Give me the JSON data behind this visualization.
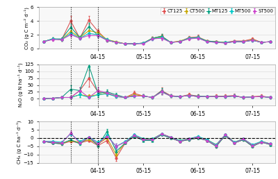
{
  "series_names": [
    "CT125",
    "CT500",
    "MT125",
    "MT500",
    "ST500"
  ],
  "series_colors": [
    "#E05050",
    "#C8A800",
    "#00A080",
    "#00C8C8",
    "#CC44CC"
  ],
  "series_markers": [
    "o",
    "s",
    "^",
    "D",
    "o"
  ],
  "n_points": 26,
  "x_values": [
    0,
    1,
    2,
    3,
    4,
    5,
    6,
    7,
    8,
    9,
    10,
    11,
    12,
    13,
    14,
    15,
    16,
    17,
    18,
    19,
    20,
    21,
    22,
    23,
    24,
    25
  ],
  "vline_x": [
    3,
    6
  ],
  "xtick_positions": [
    6,
    11,
    17,
    23
  ],
  "xtick_labels": [
    "04-15",
    "05-15",
    "06-15",
    "07-15"
  ],
  "co2_data": {
    "CT125": [
      1.0,
      1.4,
      1.3,
      4.0,
      1.5,
      4.1,
      2.5,
      1.2,
      0.9,
      0.7,
      0.7,
      0.8,
      1.5,
      1.8,
      0.9,
      1.0,
      1.6,
      1.7,
      1.1,
      1.0,
      0.9,
      1.1,
      1.1,
      1.4,
      0.9,
      1.0
    ],
    "CT500": [
      1.0,
      1.4,
      1.3,
      2.5,
      1.6,
      2.6,
      2.3,
      1.3,
      1.0,
      0.7,
      0.7,
      0.8,
      1.5,
      1.7,
      0.9,
      1.1,
      1.5,
      1.6,
      1.1,
      1.0,
      0.9,
      1.0,
      1.0,
      1.3,
      0.9,
      1.0
    ],
    "MT125": [
      1.0,
      1.4,
      1.4,
      3.1,
      1.6,
      3.2,
      1.9,
      1.2,
      0.9,
      0.7,
      0.7,
      0.8,
      1.5,
      1.8,
      0.9,
      1.0,
      1.5,
      1.6,
      1.1,
      1.0,
      0.8,
      1.0,
      1.0,
      1.2,
      0.9,
      1.0
    ],
    "MT500": [
      1.0,
      1.4,
      1.3,
      2.2,
      1.5,
      2.2,
      2.0,
      1.3,
      0.9,
      0.7,
      0.7,
      0.8,
      1.4,
      1.6,
      0.9,
      1.0,
      1.5,
      1.6,
      1.0,
      0.9,
      0.9,
      1.0,
      1.0,
      1.2,
      0.9,
      1.0
    ],
    "ST500": [
      1.0,
      1.3,
      1.3,
      2.0,
      1.5,
      1.9,
      1.9,
      1.2,
      0.9,
      0.7,
      0.7,
      0.7,
      1.4,
      1.5,
      0.9,
      1.0,
      1.4,
      1.5,
      1.0,
      0.9,
      0.8,
      1.0,
      1.0,
      1.2,
      0.9,
      1.0
    ]
  },
  "co2_err": {
    "CT125": [
      0.1,
      0.2,
      0.2,
      0.7,
      0.2,
      0.6,
      0.3,
      0.2,
      0.15,
      0.1,
      0.1,
      0.1,
      0.2,
      0.3,
      0.15,
      0.1,
      0.2,
      0.3,
      0.1,
      0.1,
      0.1,
      0.1,
      0.1,
      0.2,
      0.1,
      0.1
    ],
    "CT500": [
      0.1,
      0.2,
      0.2,
      0.4,
      0.2,
      0.4,
      0.3,
      0.2,
      0.1,
      0.1,
      0.1,
      0.1,
      0.2,
      0.3,
      0.1,
      0.1,
      0.2,
      0.2,
      0.1,
      0.1,
      0.1,
      0.1,
      0.1,
      0.15,
      0.1,
      0.1
    ],
    "MT125": [
      0.1,
      0.2,
      0.2,
      0.5,
      0.2,
      0.5,
      0.3,
      0.2,
      0.1,
      0.1,
      0.1,
      0.1,
      0.2,
      0.3,
      0.1,
      0.1,
      0.2,
      0.3,
      0.1,
      0.1,
      0.1,
      0.1,
      0.1,
      0.15,
      0.1,
      0.1
    ],
    "MT500": [
      0.1,
      0.2,
      0.2,
      0.3,
      0.2,
      0.3,
      0.3,
      0.2,
      0.1,
      0.1,
      0.1,
      0.1,
      0.2,
      0.25,
      0.1,
      0.1,
      0.2,
      0.2,
      0.1,
      0.1,
      0.1,
      0.1,
      0.1,
      0.15,
      0.1,
      0.1
    ],
    "ST500": [
      0.1,
      0.2,
      0.2,
      0.3,
      0.2,
      0.3,
      0.25,
      0.15,
      0.1,
      0.1,
      0.1,
      0.1,
      0.2,
      0.25,
      0.1,
      0.1,
      0.2,
      0.2,
      0.1,
      0.1,
      0.1,
      0.1,
      0.1,
      0.15,
      0.1,
      0.1
    ]
  },
  "n2o_data": {
    "CT125": [
      1.0,
      2.0,
      5.0,
      5.0,
      30.0,
      75.0,
      25.0,
      20.0,
      8.0,
      5.0,
      20.0,
      10.0,
      5.0,
      30.0,
      12.0,
      8.0,
      15.0,
      10.0,
      8.0,
      10.0,
      10.0,
      12.0,
      5.0,
      8.0,
      10.0,
      5.0
    ],
    "CT500": [
      1.0,
      2.0,
      5.0,
      5.0,
      15.0,
      10.0,
      15.0,
      20.0,
      10.0,
      5.0,
      15.0,
      10.0,
      5.0,
      25.0,
      10.0,
      8.0,
      12.0,
      8.0,
      8.0,
      8.0,
      8.0,
      10.0,
      5.0,
      7.0,
      8.0,
      5.0
    ],
    "MT125": [
      1.0,
      2.0,
      5.0,
      35.0,
      30.0,
      120.0,
      20.0,
      25.0,
      15.0,
      5.0,
      10.0,
      10.0,
      5.0,
      28.0,
      10.0,
      8.0,
      12.0,
      10.0,
      8.0,
      8.0,
      8.0,
      10.0,
      5.0,
      7.0,
      8.0,
      5.0
    ],
    "MT500": [
      1.0,
      2.0,
      5.0,
      5.0,
      15.0,
      5.0,
      15.0,
      18.0,
      8.0,
      5.0,
      10.0,
      10.0,
      5.0,
      25.0,
      10.0,
      8.0,
      12.0,
      8.0,
      8.0,
      8.0,
      8.0,
      10.0,
      5.0,
      7.0,
      8.0,
      5.0
    ],
    "ST500": [
      1.0,
      2.0,
      5.0,
      5.0,
      30.0,
      5.0,
      30.0,
      22.0,
      10.0,
      5.0,
      10.0,
      10.0,
      5.0,
      25.0,
      10.0,
      8.0,
      12.0,
      8.0,
      8.0,
      8.0,
      8.0,
      10.0,
      5.0,
      7.0,
      8.0,
      5.0
    ]
  },
  "n2o_err": {
    "CT125": [
      0.5,
      1.0,
      3.0,
      5.0,
      12.0,
      30.0,
      10.0,
      8.0,
      4.0,
      2.0,
      8.0,
      5.0,
      3.0,
      12.0,
      5.0,
      4.0,
      6.0,
      5.0,
      4.0,
      5.0,
      5.0,
      6.0,
      3.0,
      4.0,
      5.0,
      3.0
    ],
    "CT500": [
      0.5,
      1.0,
      3.0,
      3.0,
      8.0,
      5.0,
      8.0,
      8.0,
      5.0,
      2.0,
      6.0,
      5.0,
      3.0,
      10.0,
      5.0,
      4.0,
      5.0,
      4.0,
      4.0,
      4.0,
      4.0,
      5.0,
      3.0,
      3.0,
      4.0,
      3.0
    ],
    "MT125": [
      0.5,
      1.0,
      3.0,
      15.0,
      12.0,
      40.0,
      8.0,
      10.0,
      7.0,
      2.0,
      5.0,
      5.0,
      3.0,
      11.0,
      5.0,
      4.0,
      5.0,
      5.0,
      4.0,
      4.0,
      4.0,
      5.0,
      3.0,
      3.0,
      4.0,
      3.0
    ],
    "MT500": [
      0.5,
      1.0,
      3.0,
      3.0,
      8.0,
      3.0,
      8.0,
      7.0,
      4.0,
      2.0,
      5.0,
      5.0,
      3.0,
      10.0,
      5.0,
      4.0,
      5.0,
      4.0,
      4.0,
      4.0,
      4.0,
      5.0,
      3.0,
      3.0,
      4.0,
      3.0
    ],
    "ST500": [
      0.5,
      1.0,
      3.0,
      3.0,
      12.0,
      3.0,
      12.0,
      8.0,
      5.0,
      2.0,
      5.0,
      5.0,
      3.0,
      10.0,
      5.0,
      4.0,
      5.0,
      4.0,
      4.0,
      4.0,
      4.0,
      5.0,
      3.0,
      3.0,
      4.0,
      3.0
    ]
  },
  "ch4_data": {
    "CT125": [
      -2.0,
      -3.0,
      -3.5,
      -2.0,
      -3.0,
      -1.5,
      -4.5,
      -1.5,
      -12.0,
      -3.0,
      1.0,
      -1.0,
      -1.0,
      2.0,
      0.0,
      -2.0,
      -1.0,
      0.0,
      -1.5,
      -5.0,
      1.5,
      -3.0,
      -1.0,
      -5.0,
      -2.5,
      -4.0
    ],
    "CT500": [
      -2.0,
      -2.5,
      -3.0,
      -1.5,
      -2.5,
      -1.0,
      -3.5,
      0.0,
      -10.0,
      -2.5,
      1.5,
      -0.5,
      -0.5,
      2.5,
      0.5,
      -1.5,
      -0.5,
      0.5,
      -1.0,
      -4.0,
      2.0,
      -2.5,
      -0.5,
      -4.5,
      -2.0,
      -3.5
    ],
    "MT125": [
      -2.0,
      -3.0,
      -3.5,
      -1.0,
      -3.5,
      0.5,
      -4.5,
      4.0,
      -8.0,
      -3.0,
      1.0,
      -1.5,
      -1.5,
      2.0,
      0.0,
      -2.0,
      -1.0,
      0.0,
      -1.5,
      -5.0,
      1.5,
      -3.0,
      -1.0,
      -5.0,
      -2.5,
      -4.0
    ],
    "MT500": [
      -2.0,
      -2.0,
      -2.5,
      2.5,
      -2.0,
      0.5,
      -2.5,
      1.5,
      -5.0,
      -2.0,
      2.0,
      -0.5,
      -0.5,
      2.5,
      0.5,
      -1.5,
      -0.5,
      1.0,
      -1.0,
      -4.0,
      2.0,
      -2.5,
      -0.5,
      -4.0,
      -2.0,
      -3.5
    ],
    "ST500": [
      -2.0,
      -2.5,
      -3.0,
      3.0,
      -3.0,
      0.5,
      -3.5,
      1.0,
      -5.0,
      -2.5,
      1.5,
      -1.0,
      -1.0,
      2.5,
      0.5,
      -2.0,
      -0.5,
      0.5,
      -1.5,
      -4.5,
      2.0,
      -3.0,
      -0.5,
      -4.5,
      -2.5,
      -3.5
    ]
  },
  "ch4_err": {
    "CT125": [
      0.3,
      0.5,
      0.5,
      0.5,
      0.5,
      0.5,
      1.0,
      1.5,
      2.0,
      0.5,
      0.5,
      0.5,
      0.5,
      0.5,
      0.5,
      0.5,
      0.5,
      0.5,
      0.5,
      1.0,
      0.5,
      0.5,
      0.5,
      0.5,
      0.3,
      0.3
    ],
    "CT500": [
      0.3,
      0.5,
      0.5,
      0.5,
      0.5,
      0.5,
      0.8,
      1.0,
      1.5,
      0.5,
      0.5,
      0.5,
      0.5,
      0.5,
      0.5,
      0.5,
      0.5,
      0.5,
      0.5,
      0.8,
      0.5,
      0.5,
      0.5,
      0.5,
      0.3,
      0.3
    ],
    "MT125": [
      0.3,
      0.5,
      0.5,
      0.5,
      0.5,
      0.5,
      1.0,
      1.5,
      2.0,
      0.5,
      0.5,
      0.5,
      0.5,
      0.5,
      0.5,
      0.5,
      0.5,
      0.5,
      0.5,
      1.0,
      0.5,
      0.5,
      0.5,
      0.5,
      0.3,
      0.3
    ],
    "MT500": [
      0.3,
      0.5,
      0.5,
      1.0,
      0.5,
      0.5,
      0.8,
      1.0,
      1.5,
      0.5,
      0.5,
      0.5,
      0.5,
      0.5,
      0.5,
      0.5,
      0.5,
      0.5,
      0.5,
      0.8,
      0.5,
      0.5,
      0.5,
      0.5,
      0.3,
      0.3
    ],
    "ST500": [
      0.3,
      0.5,
      0.5,
      1.0,
      0.5,
      0.5,
      0.8,
      1.0,
      1.5,
      0.5,
      0.5,
      0.5,
      0.5,
      0.5,
      0.5,
      0.5,
      0.5,
      0.5,
      0.5,
      0.8,
      0.5,
      0.5,
      0.5,
      0.5,
      0.3,
      0.3
    ]
  },
  "co2_ylabel": "CO₂ (g C m⁻² d⁻¹)",
  "n2o_ylabel": "N₂O (g N ha⁻¹ d⁻¹)",
  "ch4_ylabel": "CH₄ (g C ha⁻¹ d⁻¹)",
  "co2_ylim": [
    0,
    6
  ],
  "n2o_ylim": [
    -25,
    125
  ],
  "ch4_ylim": [
    -15,
    10
  ],
  "co2_yticks": [
    0,
    2,
    4,
    6
  ],
  "n2o_yticks": [
    0,
    25,
    50,
    75,
    100,
    125
  ],
  "ch4_yticks": [
    -15,
    -10,
    -5,
    0,
    5,
    10
  ],
  "ch4_hline_y": 0,
  "background_color": "#ffffff",
  "panel_facecolor": "#f8f8f8",
  "grid_color": "#dddddd",
  "legend_fontsize": 5.0,
  "line_color": "#888888"
}
